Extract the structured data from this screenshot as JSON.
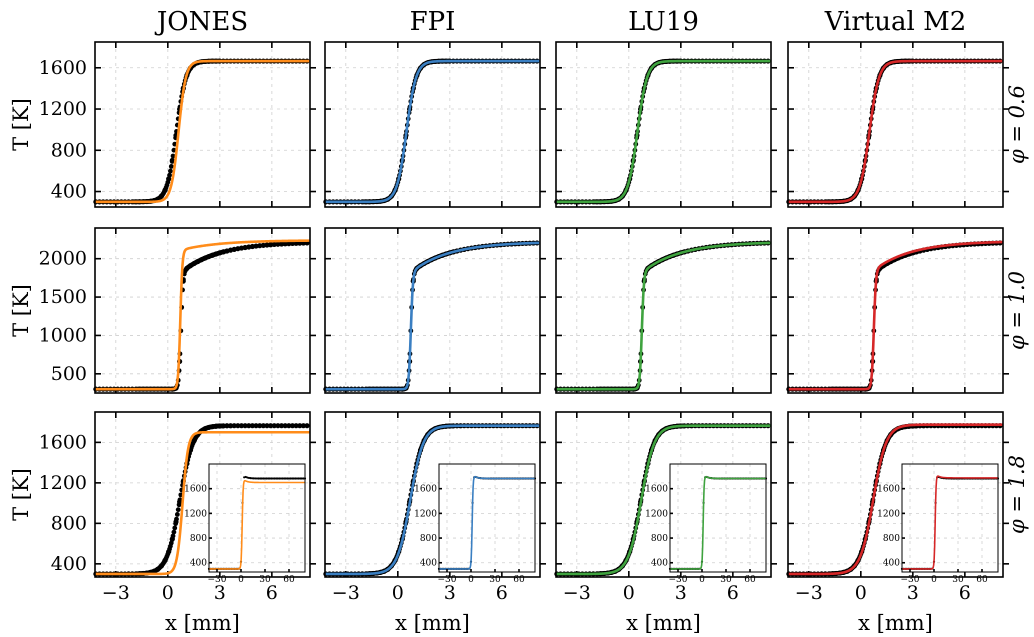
{
  "chart_data": {
    "type": "line",
    "columns": [
      "JONES",
      "FPI",
      "LU19",
      "Virtual M2"
    ],
    "row_labels": [
      "φ = 0.6",
      "φ = 1.0",
      "φ = 1.8"
    ],
    "xlabel": "x [mm]",
    "ylabel": "T [K]",
    "xlim": [
      -4.2,
      8.2
    ],
    "xticks": [
      -3,
      0,
      3,
      6
    ],
    "colors": {
      "reference_dots": "#000000",
      "JONES": "#ff8c1a",
      "FPI": "#3a7fc2",
      "LU19": "#3fa33f",
      "Virtual M2": "#d62728"
    },
    "rows": [
      {
        "phi": 0.6,
        "ylim": [
          250,
          1850
        ],
        "yticks": [
          400,
          800,
          1200,
          1600
        ],
        "reference_profile": {
          "T_unburnt": 300,
          "T_burnt": 1665,
          "x_center": 0.5,
          "width": 0.55
        },
        "model_profiles": {
          "JONES": {
            "T_unburnt": 300,
            "T_burnt": 1665,
            "x_center": 0.62,
            "width": 0.42
          },
          "FPI": {
            "T_unburnt": 300,
            "T_burnt": 1665,
            "x_center": 0.5,
            "width": 0.55
          },
          "LU19": {
            "T_unburnt": 300,
            "T_burnt": 1665,
            "x_center": 0.5,
            "width": 0.55
          },
          "Virtual M2": {
            "T_unburnt": 300,
            "T_burnt": 1665,
            "x_center": 0.5,
            "width": 0.55
          }
        }
      },
      {
        "phi": 1.0,
        "ylim": [
          250,
          2400
        ],
        "yticks": [
          500,
          1000,
          1500,
          2000
        ],
        "reference_profile": {
          "T_unburnt": 300,
          "T_flame_front": 1820,
          "T_burnt": 2220,
          "x_center": 0.75,
          "width": 0.12
        },
        "model_profiles": {
          "JONES": {
            "T_unburnt": 300,
            "T_flame_front": 2110,
            "T_burnt": 2240,
            "x_center": 0.72,
            "width": 0.12
          },
          "FPI": {
            "T_unburnt": 300,
            "T_flame_front": 1820,
            "T_burnt": 2220,
            "x_center": 0.75,
            "width": 0.12
          },
          "LU19": {
            "T_unburnt": 300,
            "T_flame_front": 1820,
            "T_burnt": 2220,
            "x_center": 0.75,
            "width": 0.12
          },
          "Virtual M2": {
            "T_unburnt": 300,
            "T_flame_front": 1850,
            "T_burnt": 2230,
            "x_center": 0.75,
            "width": 0.12
          }
        }
      },
      {
        "phi": 1.8,
        "ylim": [
          270,
          1900
        ],
        "yticks": [
          400,
          800,
          1200,
          1600
        ],
        "reference_profile": {
          "T_unburnt": 300,
          "T_burnt": 1765,
          "x_center": 0.7,
          "width": 0.75
        },
        "model_profiles": {
          "JONES": {
            "T_unburnt": 300,
            "T_burnt": 1700,
            "x_center": 0.85,
            "width": 0.32
          },
          "FPI": {
            "T_unburnt": 300,
            "T_burnt": 1765,
            "x_center": 0.72,
            "width": 0.75
          },
          "LU19": {
            "T_unburnt": 300,
            "T_burnt": 1765,
            "x_center": 0.72,
            "width": 0.75
          },
          "Virtual M2": {
            "T_unburnt": 300,
            "T_burnt": 1775,
            "x_center": 0.72,
            "width": 0.75
          }
        },
        "inset": {
          "xlim": [
            -40,
            80
          ],
          "xticks": [
            -30,
            0,
            30,
            60
          ],
          "ylim": [
            250,
            2000
          ],
          "yticks": [
            400,
            800,
            1200,
            1600
          ]
        }
      }
    ]
  }
}
